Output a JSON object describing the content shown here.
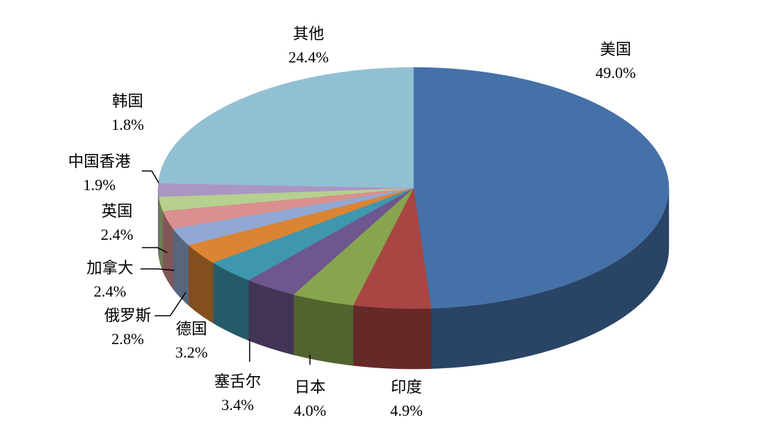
{
  "chart_data": {
    "type": "pie",
    "categories": [
      "美国",
      "印度",
      "日本",
      "塞舌尔",
      "德国",
      "俄罗斯",
      "加拿大",
      "英国",
      "中国香港",
      "韩国",
      "其他"
    ],
    "values": [
      49.0,
      4.9,
      4.0,
      3.4,
      3.2,
      2.8,
      2.4,
      2.4,
      1.9,
      1.8,
      24.4
    ],
    "value_labels": [
      "49.0%",
      "4.9%",
      "4.0%",
      "3.4%",
      "3.2%",
      "2.8%",
      "2.4%",
      "2.4%",
      "1.9%",
      "1.8%",
      "24.4%"
    ],
    "colors": [
      "#4571a8",
      "#a94543",
      "#87a54e",
      "#6e568f",
      "#3e97ae",
      "#db8434",
      "#91a8d4",
      "#d9908f",
      "#b6d08f",
      "#a996c3",
      "#92c0d3"
    ]
  }
}
